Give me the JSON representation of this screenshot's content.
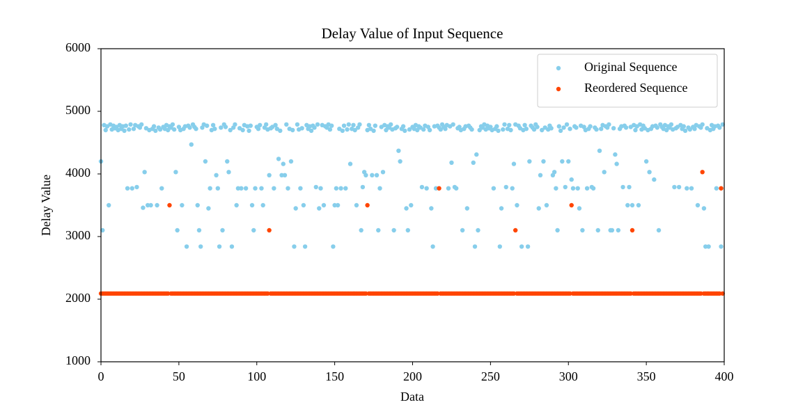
{
  "chart_data": {
    "type": "scatter",
    "title": "Delay Value of Input Sequence",
    "xlabel": "Data",
    "ylabel": "Delay Value",
    "xlim": [
      0,
      400
    ],
    "xticks": [
      0,
      50,
      100,
      150,
      200,
      250,
      300,
      350,
      400
    ],
    "ylim": [
      1000,
      6000
    ],
    "yticks": [
      1000,
      2000,
      3000,
      4000,
      5000,
      6000
    ],
    "grid": false,
    "legend": "upper right",
    "x": [
      0,
      1,
      2,
      3,
      4,
      5,
      6,
      7,
      8,
      9,
      10,
      11,
      12,
      13,
      14,
      15,
      16,
      17,
      18,
      19,
      20,
      21,
      22,
      23,
      24,
      25,
      26,
      27,
      28,
      29,
      30,
      31,
      32,
      33,
      34,
      35,
      36,
      37,
      38,
      39,
      40,
      41,
      42,
      43,
      44,
      45,
      46,
      47,
      48,
      49,
      50,
      51,
      52,
      53,
      54,
      55,
      56,
      57,
      58,
      59,
      60,
      61,
      62,
      63,
      64,
      65,
      66,
      67,
      68,
      69,
      70,
      71,
      72,
      73,
      74,
      75,
      76,
      77,
      78,
      79,
      80,
      81,
      82,
      83,
      84,
      85,
      86,
      87,
      88,
      89,
      90,
      91,
      92,
      93,
      94,
      95,
      96,
      97,
      98,
      99,
      100,
      101,
      102,
      103,
      104,
      105,
      106,
      107,
      108,
      109,
      110,
      111,
      112,
      113,
      114,
      115,
      116,
      117,
      118,
      119,
      120,
      121,
      122,
      123,
      124,
      125,
      126,
      127,
      128,
      129,
      130,
      131,
      132,
      133,
      134,
      135,
      136,
      137,
      138,
      139,
      140,
      141,
      142,
      143,
      144,
      145,
      146,
      147,
      148,
      149,
      150,
      151,
      152,
      153,
      154,
      155,
      156,
      157,
      158,
      159,
      160,
      161,
      162,
      163,
      164,
      165,
      166,
      167,
      168,
      169,
      170,
      171,
      172,
      173,
      174,
      175,
      176,
      177,
      178,
      179,
      180,
      181,
      182,
      183,
      184,
      185,
      186,
      187,
      188,
      189,
      190,
      191,
      192,
      193,
      194,
      195,
      196,
      197,
      198,
      199,
      200,
      201,
      202,
      203,
      204,
      205,
      206,
      207,
      208,
      209,
      210,
      211,
      212,
      213,
      214,
      215,
      216,
      217,
      218,
      219,
      220,
      221,
      222,
      223,
      224,
      225,
      226,
      227,
      228,
      229,
      230,
      231,
      232,
      233,
      234,
      235,
      236,
      237,
      238,
      239,
      240,
      241,
      242,
      243,
      244,
      245,
      246,
      247,
      248,
      249,
      250,
      251,
      252,
      253,
      254,
      255,
      256,
      257,
      258,
      259,
      260,
      261,
      262,
      263,
      264,
      265,
      266,
      267,
      268,
      269,
      270,
      271,
      272,
      273,
      274,
      275,
      276,
      277,
      278,
      279,
      280,
      281,
      282,
      283,
      284,
      285,
      286,
      287,
      288,
      289,
      290,
      291,
      292,
      293,
      294,
      295,
      296,
      297,
      298,
      299,
      300,
      301,
      302,
      303,
      304,
      305,
      306,
      307,
      308,
      309,
      310,
      311,
      312,
      313,
      314,
      315,
      316,
      317,
      318,
      319,
      320,
      321,
      322,
      323,
      324,
      325,
      326,
      327,
      328,
      329,
      330,
      331,
      332,
      333,
      334,
      335,
      336,
      337,
      338,
      339,
      340,
      341,
      342,
      343,
      344,
      345,
      346,
      347,
      348,
      349,
      350,
      351,
      352,
      353,
      354,
      355,
      356,
      357,
      358,
      359,
      360,
      361,
      362,
      363,
      364,
      365,
      366,
      367,
      368,
      369,
      370,
      371,
      372,
      373,
      374,
      375,
      376,
      377,
      378,
      379,
      380,
      381,
      382,
      383,
      384,
      385,
      386,
      387,
      388,
      389,
      390,
      391,
      392,
      393,
      394,
      395,
      396,
      397,
      398,
      399
    ],
    "series": [
      {
        "name": "Original Sequence",
        "color": "#87ceeb",
        "values": [
          4200,
          3100,
          4780,
          4700,
          4760,
          3500,
          4790,
          4710,
          4770,
          4730,
          4750,
          4700,
          4780,
          4720,
          4760,
          4690,
          4770,
          3770,
          4710,
          4790,
          3770,
          4720,
          4780,
          3790,
          4760,
          4740,
          4790,
          3460,
          4030,
          4730,
          3500,
          4700,
          3500,
          4720,
          4760,
          4690,
          3500,
          4740,
          4710,
          3770,
          4750,
          4720,
          4780,
          4700,
          4760,
          4740,
          4790,
          4710,
          4030,
          3100,
          4750,
          4700,
          3500,
          4720,
          4760,
          2840,
          4770,
          4740,
          4470,
          4790,
          4750,
          4720,
          3500,
          3100,
          2840,
          4740,
          4790,
          4200,
          4770,
          3450,
          3770,
          4700,
          4780,
          4720,
          3980,
          3770,
          2840,
          4740,
          3100,
          4790,
          4750,
          4200,
          4030,
          4700,
          2840,
          4740,
          4790,
          3500,
          3770,
          4730,
          3770,
          4700,
          4780,
          3770,
          4760,
          4690,
          4770,
          3500,
          3100,
          3770,
          4750,
          4720,
          4780,
          3770,
          3500,
          4740,
          4790,
          4710,
          3980,
          4730,
          4750,
          3770,
          4780,
          4720,
          4240,
          4690,
          3980,
          4160,
          3980,
          4790,
          3770,
          4720,
          4200,
          4700,
          2840,
          3450,
          4790,
          4710,
          3770,
          4730,
          3500,
          2840,
          4780,
          4720,
          4760,
          4690,
          4770,
          4740,
          3790,
          4790,
          3450,
          3770,
          4780,
          3500,
          4760,
          4740,
          4790,
          4710,
          4770,
          2840,
          3500,
          3770,
          3500,
          4720,
          3770,
          4690,
          4770,
          3770,
          4710,
          4790,
          4160,
          4720,
          4780,
          4700,
          3500,
          4740,
          4790,
          3100,
          3790,
          4030,
          3980,
          4700,
          4780,
          4720,
          3980,
          4690,
          4770,
          3980,
          3100,
          3770,
          4750,
          4030,
          4780,
          4700,
          4760,
          4740,
          4790,
          4710,
          3100,
          4730,
          4750,
          4370,
          4200,
          4720,
          4760,
          4690,
          3450,
          3100,
          4710,
          3500,
          4750,
          4720,
          4780,
          4700,
          4760,
          4740,
          3790,
          4710,
          4770,
          3770,
          4750,
          4700,
          3450,
          2840,
          4760,
          3770,
          4770,
          4740,
          4710,
          4790,
          4750,
          4720,
          4780,
          3770,
          4760,
          4180,
          4790,
          3790,
          3770,
          4730,
          4750,
          4700,
          3100,
          4720,
          4760,
          3450,
          4770,
          4740,
          4710,
          4180,
          2840,
          4310,
          3100,
          4700,
          4760,
          4740,
          4790,
          4710,
          4770,
          4730,
          4750,
          4700,
          3770,
          4720,
          4760,
          4690,
          2840,
          3450,
          4710,
          4790,
          3790,
          4720,
          4780,
          4700,
          3770,
          4160,
          4790,
          3500,
          4770,
          4730,
          2840,
          4700,
          4780,
          4720,
          2840,
          4200,
          4770,
          4740,
          4710,
          4790,
          4750,
          3450,
          3980,
          4700,
          4200,
          4740,
          3500,
          4710,
          4770,
          4730,
          3980,
          4030,
          3770,
          3100,
          4760,
          4690,
          4200,
          4740,
          3790,
          4790,
          4200,
          4720,
          3910,
          3770,
          4760,
          4740,
          3770,
          3450,
          4770,
          3100,
          4750,
          4700,
          3770,
          4720,
          4760,
          3790,
          3770,
          4740,
          4710,
          3100,
          4370,
          4720,
          4780,
          4030,
          4760,
          4740,
          4790,
          3100,
          3100,
          4730,
          4310,
          4160,
          3100,
          4720,
          4760,
          3790,
          4770,
          4740,
          3500,
          3790,
          4750,
          3500,
          4780,
          4700,
          4760,
          3500,
          4790,
          4710,
          4770,
          4730,
          4200,
          4700,
          4030,
          4720,
          4760,
          3910,
          4770,
          4740,
          3100,
          4790,
          4750,
          4720,
          4780,
          4700,
          4760,
          4740,
          4790,
          4710,
          3790,
          4730,
          4750,
          3790,
          4780,
          4720,
          4760,
          4690,
          3770,
          4740,
          4710,
          3770,
          4750,
          4720,
          4780,
          3500,
          4760,
          4740,
          4790,
          3450,
          2840,
          4730,
          2840,
          4700,
          4780,
          4720,
          4760,
          3770,
          4770,
          4740,
          2840,
          4790
        ]
      },
      {
        "name": "Reordered Sequence",
        "color": "#ff4500",
        "values": [
          2090,
          2090,
          2090,
          2090,
          2090,
          2090,
          2090,
          2090,
          2090,
          2090,
          2090,
          2090,
          2090,
          2090,
          2090,
          2090,
          2090,
          2090,
          2090,
          2090,
          2090,
          2090,
          2090,
          2090,
          2090,
          2090,
          2090,
          2090,
          2090,
          2090,
          2090,
          2090,
          2090,
          2090,
          2090,
          2090,
          2090,
          2090,
          2090,
          2090,
          2090,
          2090,
          2090,
          2090,
          3500,
          2090,
          2090,
          2090,
          2090,
          2090,
          2090,
          2090,
          2090,
          2090,
          2090,
          2090,
          2090,
          2090,
          2090,
          2090,
          2090,
          2090,
          2090,
          2090,
          2090,
          2090,
          2090,
          2090,
          2090,
          2090,
          2090,
          2090,
          2090,
          2090,
          2090,
          2090,
          2090,
          2090,
          2090,
          2090,
          2090,
          2090,
          2090,
          2090,
          2090,
          2090,
          2090,
          2090,
          2090,
          2090,
          2090,
          2090,
          2090,
          2090,
          2090,
          2090,
          2090,
          2090,
          2090,
          2090,
          2090,
          2090,
          2090,
          2090,
          2090,
          2090,
          2090,
          2090,
          3100,
          2090,
          2090,
          2090,
          2090,
          2090,
          2090,
          2090,
          2090,
          2090,
          2090,
          2090,
          2090,
          2090,
          2090,
          2090,
          2090,
          2090,
          2090,
          2090,
          2090,
          2090,
          2090,
          2090,
          2090,
          2090,
          2090,
          2090,
          2090,
          2090,
          2090,
          2090,
          2090,
          2090,
          2090,
          2090,
          2090,
          2090,
          2090,
          2090,
          2090,
          2090,
          2090,
          2090,
          2090,
          2090,
          2090,
          2090,
          2090,
          2090,
          2090,
          2090,
          2090,
          2090,
          2090,
          2090,
          2090,
          2090,
          2090,
          2090,
          2090,
          2090,
          2090,
          3500,
          2090,
          2090,
          2090,
          2090,
          2090,
          2090,
          2090,
          2090,
          2090,
          2090,
          2090,
          2090,
          2090,
          2090,
          2090,
          2090,
          2090,
          2090,
          2090,
          2090,
          2090,
          2090,
          2090,
          2090,
          2090,
          2090,
          2090,
          2090,
          2090,
          2090,
          2090,
          2090,
          2090,
          2090,
          2090,
          2090,
          2090,
          2090,
          2090,
          2090,
          2090,
          2090,
          2090,
          2090,
          2090,
          3770,
          2090,
          2090,
          2090,
          2090,
          2090,
          2090,
          2090,
          2090,
          2090,
          2090,
          2090,
          2090,
          2090,
          2090,
          2090,
          2090,
          2090,
          2090,
          2090,
          2090,
          2090,
          2090,
          2090,
          2090,
          2090,
          2090,
          2090,
          2090,
          2090,
          2090,
          2090,
          2090,
          2090,
          2090,
          2090,
          2090,
          2090,
          2090,
          2090,
          2090,
          2090,
          2090,
          2090,
          2090,
          2090,
          2090,
          2090,
          2090,
          3100,
          2090,
          2090,
          2090,
          2090,
          2090,
          2090,
          2090,
          2090,
          2090,
          2090,
          2090,
          2090,
          2090,
          2090,
          2090,
          2090,
          2090,
          2090,
          2090,
          2090,
          2090,
          2090,
          2090,
          2090,
          2090,
          2090,
          2090,
          2090,
          2090,
          2090,
          2090,
          2090,
          2090,
          2090,
          2090,
          3500,
          2090,
          2090,
          2090,
          2090,
          2090,
          2090,
          2090,
          2090,
          2090,
          2090,
          2090,
          2090,
          2090,
          2090,
          2090,
          2090,
          2090,
          2090,
          2090,
          2090,
          2090,
          2090,
          2090,
          2090,
          2090,
          2090,
          2090,
          2090,
          2090,
          2090,
          2090,
          2090,
          2090,
          2090,
          2090,
          2090,
          2090,
          2090,
          3100,
          2090,
          2090,
          2090,
          2090,
          2090,
          2090,
          2090,
          2090,
          2090,
          2090,
          2090,
          2090,
          2090,
          2090,
          2090,
          2090,
          2090,
          2090,
          2090,
          2090,
          2090,
          2090,
          2090,
          2090,
          2090,
          2090,
          2090,
          2090,
          2090,
          2090,
          2090,
          2090,
          2090,
          2090,
          2090,
          2090,
          2090,
          2090,
          2090,
          2090,
          2090,
          2090,
          2090,
          2090,
          4030,
          2090,
          2090,
          2090,
          2090,
          2090,
          2090,
          2090,
          2090,
          2090,
          2090,
          2090,
          3770,
          2090
        ]
      }
    ]
  }
}
